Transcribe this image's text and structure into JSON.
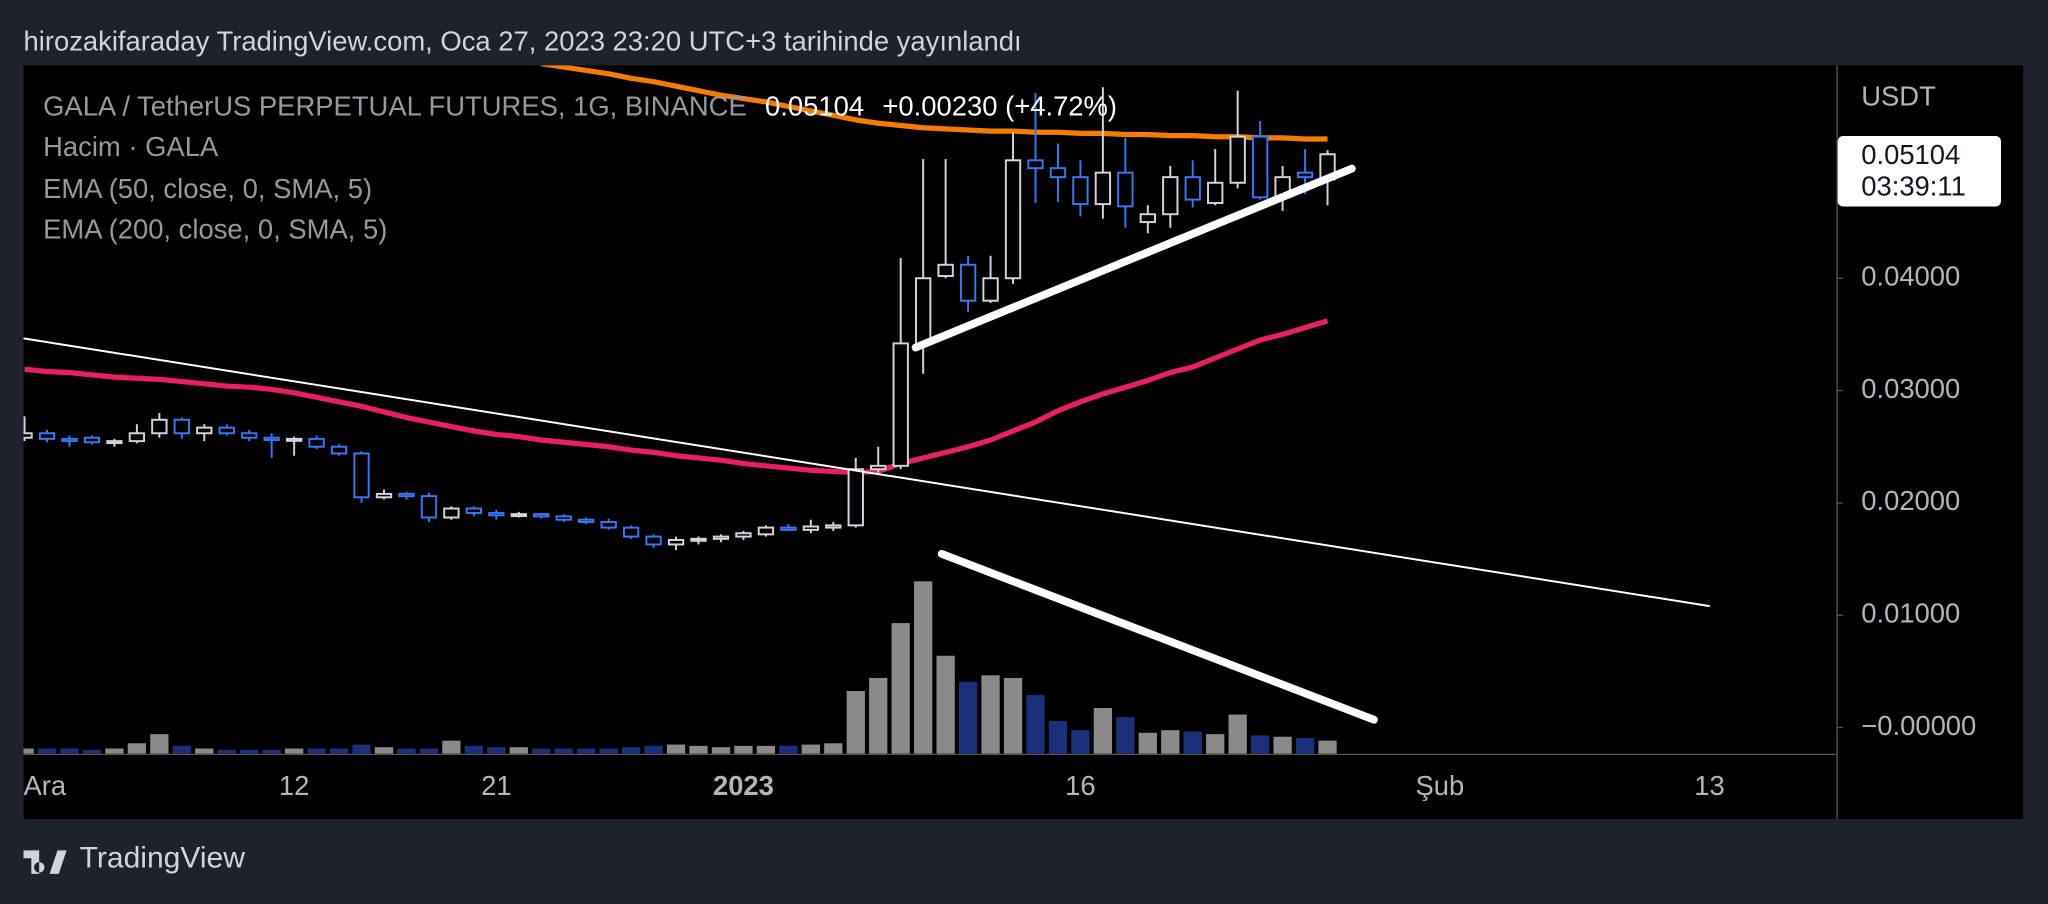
{
  "header": {
    "text": "hirozakifaraday TradingView.com, Oca 27, 2023 23:20 UTC+3 tarihinde yayınlandı"
  },
  "footer": {
    "brand": "TradingView"
  },
  "chart_data": {
    "type": "candlestick",
    "title": "GALA / TetherUS PERPETUAL FUTURES, 1G, BINANCE",
    "last_price": 0.05104,
    "change": "+0.00230 (+4.72%)",
    "countdown": "03:39:11",
    "currency": "USDT",
    "categories": [
      null,
      "Ara",
      null,
      null,
      null,
      null,
      null,
      null,
      null,
      null,
      null,
      null,
      "12",
      null,
      null,
      null,
      null,
      null,
      null,
      null,
      null,
      "21",
      null,
      null,
      null,
      null,
      null,
      null,
      null,
      null,
      null,
      null,
      "2023",
      null,
      null,
      null,
      null,
      null,
      null,
      null,
      null,
      null,
      null,
      null,
      null,
      null,
      null,
      "16",
      null,
      null,
      null,
      null,
      null,
      null,
      null,
      null,
      null,
      null,
      null,
      null,
      null,
      null,
      null,
      "Şub",
      null,
      null,
      null,
      null,
      null,
      null,
      null,
      null,
      null,
      null,
      null,
      "13",
      null,
      null,
      null,
      null,
      null
    ],
    "open": [
      0.0258,
      0.0262,
      0.0257,
      0.0258,
      0.0254,
      0.0255,
      0.0262,
      0.0274,
      0.0262,
      0.0267,
      0.0262,
      0.0258,
      0.0256,
      0.0257,
      0.025,
      0.0244,
      0.0205,
      0.0208,
      0.0206,
      0.0187,
      0.0195,
      0.0191,
      0.0189,
      0.019,
      0.0188,
      0.0185,
      0.0183,
      0.0178,
      0.017,
      0.0163,
      0.0167,
      0.0168,
      0.017,
      0.0172,
      0.0178,
      0.0176,
      0.0178,
      0.018,
      0.023,
      0.0233,
      0.0342,
      0.0402,
      0.0412,
      0.038,
      0.04,
      0.0505,
      0.0498,
      0.049,
      0.0466,
      0.0494,
      0.045,
      0.0457,
      0.049,
      0.0467,
      0.0485,
      0.0526,
      0.0472,
      0.0494,
      0.0488,
      null,
      null,
      null,
      null,
      null,
      null,
      null,
      null,
      null,
      null,
      null,
      null,
      null,
      null,
      null,
      null,
      null,
      null,
      null,
      null,
      null,
      null
    ],
    "high": [
      0.0277,
      0.0265,
      0.026,
      0.026,
      0.0257,
      0.027,
      0.028,
      0.0276,
      0.027,
      0.027,
      0.0265,
      0.0262,
      0.0259,
      0.026,
      0.0252,
      0.0246,
      0.0212,
      0.021,
      0.0209,
      0.0197,
      0.0197,
      0.0194,
      0.0192,
      0.0191,
      0.019,
      0.0187,
      0.0186,
      0.018,
      0.0172,
      0.017,
      0.017,
      0.0172,
      0.0175,
      0.018,
      0.0181,
      0.0185,
      0.0183,
      0.024,
      0.025,
      0.0418,
      0.0506,
      0.0506,
      0.042,
      0.042,
      0.053,
      0.0565,
      0.052,
      0.0505,
      0.057,
      0.0525,
      0.0465,
      0.05,
      0.0505,
      0.0515,
      0.0567,
      0.054,
      0.05,
      0.0515,
      0.0514,
      null,
      null,
      null,
      null,
      null,
      null,
      null,
      null,
      null,
      null,
      null,
      null,
      null,
      null,
      null,
      null,
      null,
      null,
      null,
      null,
      null,
      null
    ],
    "low": [
      0.0255,
      0.0254,
      0.025,
      0.0252,
      0.025,
      0.0253,
      0.0258,
      0.0257,
      0.0255,
      0.026,
      0.0255,
      0.024,
      0.0242,
      0.0248,
      0.0242,
      0.02,
      0.0203,
      0.0203,
      0.0183,
      0.0185,
      0.0188,
      0.0185,
      0.0187,
      0.0186,
      0.0183,
      0.0181,
      0.0176,
      0.0168,
      0.016,
      0.0158,
      0.0163,
      0.0165,
      0.0167,
      0.017,
      0.0175,
      0.0173,
      0.0175,
      0.0178,
      0.0227,
      0.023,
      0.0315,
      0.04,
      0.037,
      0.0378,
      0.0395,
      0.0467,
      0.0468,
      0.0455,
      0.0453,
      0.0445,
      0.044,
      0.0445,
      0.0463,
      0.0465,
      0.048,
      0.047,
      0.046,
      0.0475,
      0.0465,
      null,
      null,
      null,
      null,
      null,
      null,
      null,
      null,
      null,
      null,
      null,
      null,
      null,
      null,
      null,
      null,
      null,
      null,
      null,
      null,
      null,
      null
    ],
    "close": [
      0.0262,
      0.0257,
      0.0255,
      0.0254,
      0.0255,
      0.0262,
      0.0274,
      0.0262,
      0.0267,
      0.0262,
      0.0258,
      0.0256,
      0.0257,
      0.025,
      0.0244,
      0.0205,
      0.0208,
      0.0206,
      0.0187,
      0.0195,
      0.0191,
      0.0189,
      0.019,
      0.0188,
      0.0185,
      0.0183,
      0.0178,
      0.017,
      0.0163,
      0.0167,
      0.0168,
      0.017,
      0.0173,
      0.0178,
      0.0176,
      0.0179,
      0.018,
      0.023,
      0.0233,
      0.0342,
      0.04,
      0.0412,
      0.038,
      0.04,
      0.0505,
      0.0498,
      0.049,
      0.0466,
      0.0494,
      0.0464,
      0.0457,
      0.049,
      0.047,
      0.0485,
      0.0526,
      0.0472,
      0.049,
      0.049,
      0.05104,
      null,
      null,
      null,
      null,
      null,
      null,
      null,
      null,
      null,
      null,
      null,
      null,
      null,
      null,
      null,
      null,
      null,
      null,
      null,
      null,
      null,
      null
    ],
    "up_color": "#d1d4dc",
    "down_color": "#3179f5",
    "volume": {
      "name": "Hacim · GALA",
      "up_color": "#8a8a8a",
      "down_color": "#1c2f7a",
      "values": [
        4,
        4,
        4,
        3,
        4,
        8,
        15,
        6,
        4,
        3,
        3,
        3,
        4,
        4,
        4,
        7,
        5,
        4,
        4,
        10,
        6,
        5,
        5,
        4,
        4,
        4,
        4,
        5,
        6,
        7,
        6,
        5,
        6,
        6,
        6,
        7,
        8,
        48,
        58,
        100,
        132,
        75,
        55,
        60,
        58,
        45,
        25,
        18,
        35,
        28,
        16,
        18,
        17,
        15,
        30,
        14,
        13,
        12,
        10,
        null,
        null,
        null,
        null,
        null,
        null,
        null,
        null,
        null,
        null,
        null,
        null,
        null,
        null,
        null,
        null,
        null,
        null,
        null,
        null,
        null,
        null
      ]
    },
    "series": [
      {
        "name": "EMA (50, close, 0, SMA, 5)",
        "color": "#e91e63",
        "values": [
          0.0319,
          0.0317,
          0.0316,
          0.0314,
          0.0312,
          0.0311,
          0.031,
          0.0308,
          0.0306,
          0.0304,
          0.0303,
          0.0301,
          0.0298,
          0.0294,
          0.029,
          0.0286,
          0.0281,
          0.0276,
          0.0272,
          0.0268,
          0.0264,
          0.0261,
          0.0259,
          0.0256,
          0.0254,
          0.0252,
          0.025,
          0.0247,
          0.0245,
          0.0242,
          0.024,
          0.0238,
          0.0235,
          0.0233,
          0.0231,
          0.0229,
          0.0228,
          0.0227,
          0.0228,
          0.0235,
          0.024,
          0.0245,
          0.025,
          0.0256,
          0.0264,
          0.0272,
          0.0282,
          0.029,
          0.0297,
          0.0303,
          0.0309,
          0.0316,
          0.0321,
          0.0329,
          0.0337,
          0.0345,
          0.035,
          0.0356,
          0.0362,
          null,
          null,
          null,
          null,
          null,
          null,
          null,
          null,
          null,
          null,
          null,
          null,
          null,
          null,
          null,
          null,
          null,
          null,
          null,
          null,
          null,
          null
        ]
      },
      {
        "name": "EMA (200, close, 0, SMA, 5)",
        "color": "#f57c00",
        "values": [
          null,
          null,
          null,
          null,
          null,
          null,
          null,
          null,
          null,
          null,
          null,
          null,
          null,
          null,
          null,
          null,
          null,
          null,
          null,
          null,
          null,
          null,
          null,
          0.0591,
          0.0588,
          0.0585,
          0.0582,
          0.0578,
          0.0575,
          0.0571,
          0.0567,
          0.0563,
          0.056,
          0.0557,
          0.0553,
          0.0549,
          0.0545,
          0.0541,
          0.0538,
          0.0536,
          0.0534,
          0.0533,
          0.0532,
          0.0531,
          0.0531,
          0.053,
          0.053,
          0.0529,
          0.0529,
          0.0528,
          0.0528,
          0.0527,
          0.0527,
          0.0526,
          0.0526,
          0.0525,
          0.0525,
          0.0524,
          0.0524,
          null,
          null,
          null,
          null,
          null,
          null,
          null,
          null,
          null,
          null,
          null,
          null,
          null,
          null,
          null,
          null,
          null,
          null,
          null,
          null,
          null,
          null
        ]
      }
    ],
    "ylim": [
      -0.00233,
      0.05895
    ],
    "yticks": [
      {
        "value": 0,
        "label": "−0.00000"
      },
      {
        "value": 0.01,
        "label": "0.01000"
      },
      {
        "value": 0.02,
        "label": "0.02000"
      },
      {
        "value": 0.03,
        "label": "0.03000"
      },
      {
        "value": 0.04,
        "label": "0.04000"
      }
    ],
    "grid": false
  }
}
